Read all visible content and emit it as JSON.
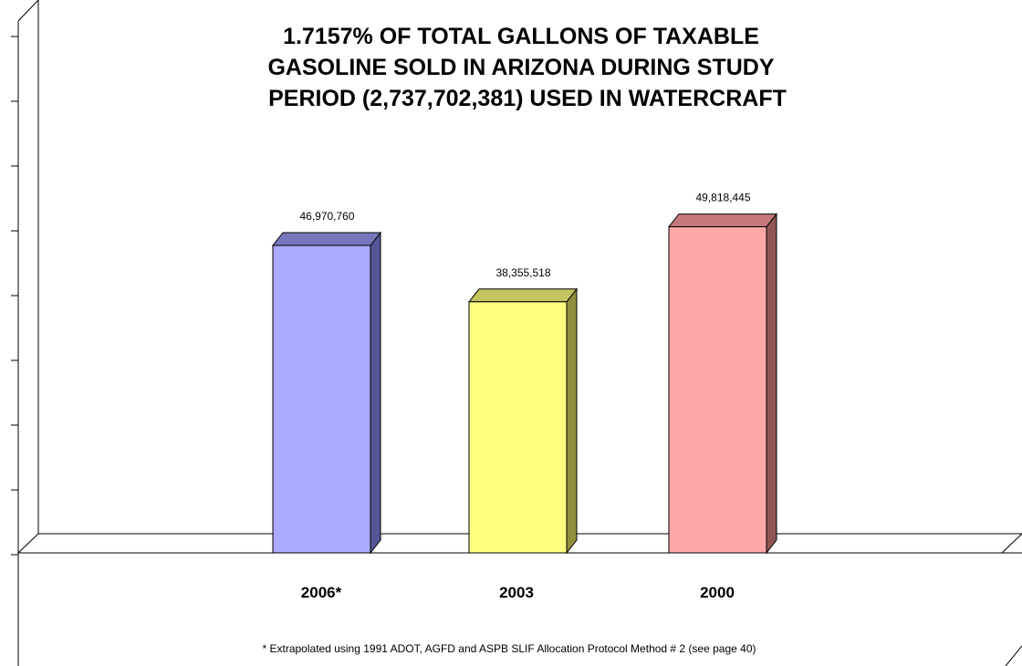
{
  "chart_data": {
    "type": "bar",
    "title_lines": [
      "1.7157% OF TOTAL GALLONS OF TAXABLE",
      "GASOLINE SOLD IN ARIZONA DURING STUDY",
      "PERIOD (2,737,702,381) USED IN WATERCRAFT"
    ],
    "categories": [
      "2006*",
      "2003",
      "2000"
    ],
    "values": [
      46970760,
      38355518,
      49818445
    ],
    "value_labels": [
      "46,970,760",
      "38,355,518",
      "49,818,445"
    ],
    "bar_colors": [
      {
        "front": "#aaaaff",
        "top": "#7777bb",
        "side": "#555599"
      },
      {
        "front": "#ffff80",
        "top": "#c4c460",
        "side": "#8f8f3e"
      },
      {
        "front": "#ffa8a8",
        "top": "#c47a7a",
        "side": "#8f5555"
      }
    ],
    "ylim": [
      0,
      60000000
    ],
    "y_tick_labels_visible": false,
    "footnote": "* Extrapolated using 1991 ADOT, AGFD and ASPB SLIF Allocation Protocol Method # 2 (see page 40)",
    "three_d": true,
    "legend": "none"
  }
}
